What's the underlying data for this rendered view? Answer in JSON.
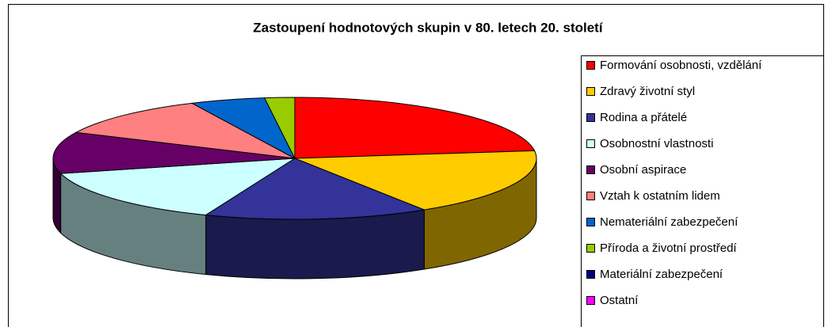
{
  "chart_data": {
    "type": "pie",
    "title": "Zastoupení hodnotových skupin v 80. letech 20. století",
    "categories": [
      "Formování osobnosti, vzdělání",
      "Zdravý životní styl",
      "Rodina a přátelé",
      "Osobnostní vlastnosti",
      "Osobní aspirace",
      "Vztah k ostatním lidem",
      "Nemateriální zabezpečení",
      "Příroda a životní prostředí",
      "Materiální zabezpečení",
      "Ostatní"
    ],
    "values": [
      23,
      18,
      15,
      15,
      11,
      11,
      5,
      2,
      0,
      0
    ],
    "colors": [
      "#ff0000",
      "#ffcc00",
      "#333399",
      "#ccffff",
      "#660066",
      "#ff8080",
      "#0066cc",
      "#99cc00",
      "#000080",
      "#ff00ff"
    ],
    "legend": "right"
  }
}
